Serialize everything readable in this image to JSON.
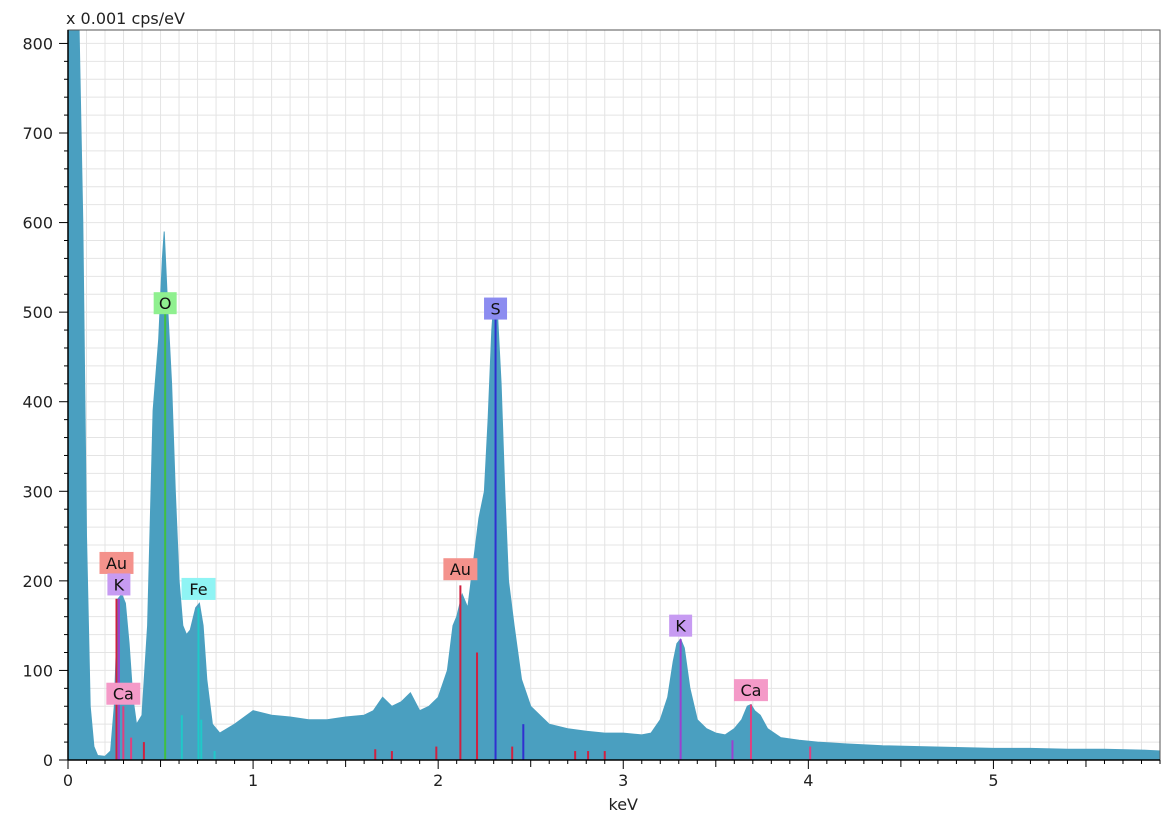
{
  "chart_data": {
    "type": "area",
    "title": "",
    "ylabel": "x 0.001 cps/eV",
    "xlabel": "keV",
    "xlim": [
      0,
      5.9
    ],
    "ylim": [
      0,
      815
    ],
    "x_ticks": [
      0,
      1,
      2,
      3,
      4,
      5
    ],
    "x_tick_labels": [
      "0",
      "1",
      "2",
      "3",
      "4",
      "5"
    ],
    "y_ticks": [
      0,
      100,
      200,
      300,
      400,
      500,
      600,
      700,
      800
    ],
    "y_tick_labels": [
      "0",
      "100",
      "200",
      "300",
      "400",
      "500",
      "600",
      "700",
      "800"
    ],
    "grid": true,
    "spectrum_color": "#4a9fc0",
    "series": [
      {
        "points": [
          [
            0.0,
            815
          ],
          [
            0.06,
            815
          ],
          [
            0.08,
            600
          ],
          [
            0.1,
            250
          ],
          [
            0.12,
            60
          ],
          [
            0.14,
            15
          ],
          [
            0.16,
            5
          ],
          [
            0.2,
            4
          ],
          [
            0.23,
            10
          ],
          [
            0.25,
            60
          ],
          [
            0.27,
            180
          ],
          [
            0.29,
            185
          ],
          [
            0.31,
            175
          ],
          [
            0.33,
            130
          ],
          [
            0.35,
            70
          ],
          [
            0.37,
            40
          ],
          [
            0.4,
            50
          ],
          [
            0.43,
            150
          ],
          [
            0.46,
            390
          ],
          [
            0.49,
            470
          ],
          [
            0.51,
            560
          ],
          [
            0.52,
            590
          ],
          [
            0.54,
            500
          ],
          [
            0.56,
            420
          ],
          [
            0.58,
            300
          ],
          [
            0.6,
            200
          ],
          [
            0.62,
            150
          ],
          [
            0.64,
            140
          ],
          [
            0.66,
            145
          ],
          [
            0.69,
            170
          ],
          [
            0.71,
            175
          ],
          [
            0.73,
            150
          ],
          [
            0.75,
            90
          ],
          [
            0.78,
            40
          ],
          [
            0.82,
            30
          ],
          [
            0.9,
            40
          ],
          [
            1.0,
            55
          ],
          [
            1.1,
            50
          ],
          [
            1.2,
            48
          ],
          [
            1.3,
            45
          ],
          [
            1.4,
            45
          ],
          [
            1.5,
            48
          ],
          [
            1.6,
            50
          ],
          [
            1.65,
            55
          ],
          [
            1.7,
            70
          ],
          [
            1.75,
            60
          ],
          [
            1.8,
            65
          ],
          [
            1.85,
            75
          ],
          [
            1.9,
            55
          ],
          [
            1.95,
            60
          ],
          [
            2.0,
            70
          ],
          [
            2.05,
            100
          ],
          [
            2.08,
            150
          ],
          [
            2.1,
            160
          ],
          [
            2.13,
            185
          ],
          [
            2.16,
            170
          ],
          [
            2.19,
            220
          ],
          [
            2.22,
            270
          ],
          [
            2.25,
            300
          ],
          [
            2.27,
            380
          ],
          [
            2.29,
            480
          ],
          [
            2.3,
            510
          ],
          [
            2.32,
            500
          ],
          [
            2.34,
            420
          ],
          [
            2.36,
            300
          ],
          [
            2.38,
            200
          ],
          [
            2.41,
            150
          ],
          [
            2.45,
            90
          ],
          [
            2.5,
            60
          ],
          [
            2.6,
            40
          ],
          [
            2.7,
            35
          ],
          [
            2.8,
            32
          ],
          [
            2.9,
            30
          ],
          [
            3.0,
            30
          ],
          [
            3.1,
            28
          ],
          [
            3.15,
            30
          ],
          [
            3.2,
            45
          ],
          [
            3.24,
            70
          ],
          [
            3.27,
            110
          ],
          [
            3.29,
            130
          ],
          [
            3.31,
            135
          ],
          [
            3.33,
            125
          ],
          [
            3.36,
            80
          ],
          [
            3.4,
            45
          ],
          [
            3.45,
            35
          ],
          [
            3.5,
            30
          ],
          [
            3.55,
            28
          ],
          [
            3.6,
            35
          ],
          [
            3.64,
            45
          ],
          [
            3.67,
            60
          ],
          [
            3.69,
            62
          ],
          [
            3.71,
            55
          ],
          [
            3.74,
            50
          ],
          [
            3.78,
            35
          ],
          [
            3.85,
            25
          ],
          [
            3.95,
            22
          ],
          [
            4.05,
            20
          ],
          [
            4.2,
            18
          ],
          [
            4.4,
            16
          ],
          [
            4.6,
            15
          ],
          [
            4.8,
            14
          ],
          [
            5.0,
            13
          ],
          [
            5.2,
            13
          ],
          [
            5.4,
            12
          ],
          [
            5.6,
            12
          ],
          [
            5.8,
            11
          ],
          [
            5.9,
            10
          ]
        ]
      }
    ],
    "element_lines": [
      {
        "x": 0.262,
        "y": 180,
        "color": "#d02040"
      },
      {
        "x": 0.275,
        "y": 180,
        "color": "#9a40d0"
      },
      {
        "x": 0.299,
        "y": 60,
        "color": "#e0407f"
      },
      {
        "x": 0.341,
        "y": 25,
        "color": "#e0407f"
      },
      {
        "x": 0.41,
        "y": 20,
        "color": "#d02040"
      },
      {
        "x": 0.525,
        "y": 500,
        "color": "#40c040"
      },
      {
        "x": 0.615,
        "y": 50,
        "color": "#20c8c8"
      },
      {
        "x": 0.705,
        "y": 170,
        "color": "#20c8c8"
      },
      {
        "x": 0.72,
        "y": 45,
        "color": "#20c8c8"
      },
      {
        "x": 0.792,
        "y": 10,
        "color": "#20c8c8"
      },
      {
        "x": 1.66,
        "y": 12,
        "color": "#d02040"
      },
      {
        "x": 1.75,
        "y": 10,
        "color": "#d02040"
      },
      {
        "x": 1.99,
        "y": 15,
        "color": "#d02040"
      },
      {
        "x": 2.12,
        "y": 195,
        "color": "#d02040"
      },
      {
        "x": 2.21,
        "y": 120,
        "color": "#d02040"
      },
      {
        "x": 2.31,
        "y": 500,
        "color": "#3030d0"
      },
      {
        "x": 2.4,
        "y": 15,
        "color": "#d02040"
      },
      {
        "x": 2.46,
        "y": 40,
        "color": "#3030d0"
      },
      {
        "x": 2.74,
        "y": 10,
        "color": "#d02040"
      },
      {
        "x": 2.81,
        "y": 10,
        "color": "#d02040"
      },
      {
        "x": 2.9,
        "y": 10,
        "color": "#d02040"
      },
      {
        "x": 3.31,
        "y": 135,
        "color": "#9a40d0"
      },
      {
        "x": 3.59,
        "y": 22,
        "color": "#9a40d0"
      },
      {
        "x": 3.69,
        "y": 62,
        "color": "#e0407f"
      },
      {
        "x": 4.01,
        "y": 15,
        "color": "#e0407f"
      }
    ],
    "peak_labels": [
      {
        "text": "Au",
        "x": 0.262,
        "y": 220,
        "color": "#f4928c"
      },
      {
        "text": "K",
        "x": 0.275,
        "y": 196,
        "color": "#c79bf2"
      },
      {
        "text": "Ca",
        "x": 0.299,
        "y": 74,
        "color": "#f49ac8"
      },
      {
        "text": "O",
        "x": 0.525,
        "y": 510,
        "color": "#8ff08f"
      },
      {
        "text": "Fe",
        "x": 0.705,
        "y": 191,
        "color": "#8ff4f4"
      },
      {
        "text": "Au",
        "x": 2.12,
        "y": 213,
        "color": "#f4928c"
      },
      {
        "text": "S",
        "x": 2.31,
        "y": 504,
        "color": "#8c8cf0"
      },
      {
        "text": "K",
        "x": 3.31,
        "y": 150,
        "color": "#c79bf2"
      },
      {
        "text": "Ca",
        "x": 3.69,
        "y": 78,
        "color": "#f49ac8"
      }
    ]
  }
}
